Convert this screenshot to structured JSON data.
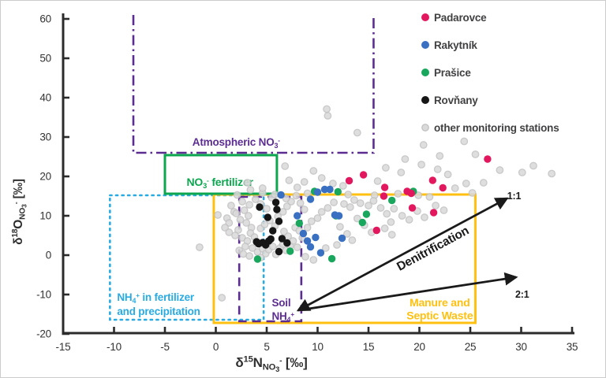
{
  "figure": {
    "type_label": "nitrate dual isotope biplot",
    "background": "#ffffff",
    "border_color": "#cccccc",
    "axis_color": "#2b2b2b",
    "tick_label_color": "#333333",
    "legend_text_color": "#414042"
  },
  "chart_data": {
    "type": "scatter",
    "xlim": [
      -15,
      35
    ],
    "ylim": [
      -20,
      60
    ],
    "x_ticks": [
      -15,
      -10,
      -5,
      0,
      5,
      10,
      15,
      20,
      25,
      30,
      35
    ],
    "y_ticks": [
      -20,
      -10,
      0,
      10,
      20,
      30,
      40,
      50,
      60
    ],
    "grid": false,
    "xlabel_rich": [
      [
        "δ",
        "n"
      ],
      [
        "15",
        "sup"
      ],
      [
        "N",
        "n"
      ],
      [
        "NO",
        "sub"
      ],
      [
        "3",
        "sub2"
      ],
      [
        "-",
        "msup"
      ],
      [
        " [‰]",
        "n"
      ]
    ],
    "ylabel_rich": [
      [
        "δ",
        "n"
      ],
      [
        "18",
        "sup"
      ],
      [
        "O",
        "n"
      ],
      [
        "NO",
        "sub"
      ],
      [
        "3",
        "sub2"
      ],
      [
        "-",
        "msup"
      ],
      [
        " [‰]",
        "n"
      ]
    ],
    "series": [
      {
        "id": "padarovce",
        "name": "Padarovce",
        "color": "#e2175d",
        "r": 4.7,
        "points": [
          [
            13.1,
            18.9
          ],
          [
            14.5,
            20.4
          ],
          [
            16.6,
            17.2
          ],
          [
            16.5,
            15.0
          ],
          [
            18.8,
            16.2
          ],
          [
            19.2,
            15.7
          ],
          [
            19.3,
            12.0
          ],
          [
            21.3,
            19.0
          ],
          [
            22.3,
            17.1
          ],
          [
            21.4,
            10.8
          ],
          [
            15.8,
            6.3
          ],
          [
            26.7,
            24.4
          ]
        ]
      },
      {
        "id": "rakytnik",
        "name": "Rakytník",
        "color": "#3a70c2",
        "r": 4.7,
        "points": [
          [
            6.4,
            15.3
          ],
          [
            9.3,
            14.2
          ],
          [
            10.0,
            16.0
          ],
          [
            10.7,
            16.7
          ],
          [
            11.2,
            16.7
          ],
          [
            8.0,
            10.0
          ],
          [
            11.7,
            10.2
          ],
          [
            12.1,
            10.0
          ],
          [
            12.4,
            4.3
          ],
          [
            8.6,
            5.5
          ],
          [
            9.8,
            4.5
          ],
          [
            9.0,
            3.6
          ],
          [
            9.3,
            2.1
          ],
          [
            10.3,
            0.6
          ]
        ]
      },
      {
        "id": "prasice",
        "name": "Prašice",
        "color": "#18a75c",
        "r": 4.7,
        "points": [
          [
            9.7,
            16.2
          ],
          [
            12.0,
            16.1
          ],
          [
            19.4,
            16.2
          ],
          [
            17.3,
            13.9
          ],
          [
            11.8,
            10.0
          ],
          [
            14.8,
            10.4
          ],
          [
            14.4,
            8.3
          ],
          [
            8.2,
            8.1
          ],
          [
            7.3,
            1.0
          ],
          [
            4.1,
            -1.0
          ],
          [
            11.4,
            -0.9
          ]
        ]
      },
      {
        "id": "rovnany",
        "name": "Rovňany",
        "color": "#161616",
        "r": 4.7,
        "points": [
          [
            4.3,
            12.2
          ],
          [
            5.9,
            13.4
          ],
          [
            6.0,
            11.6
          ],
          [
            5.1,
            9.6
          ],
          [
            6.2,
            8.6
          ],
          [
            5.6,
            6.2
          ],
          [
            5.4,
            4.1
          ],
          [
            6.5,
            4.2
          ],
          [
            7.0,
            3.1
          ],
          [
            4.2,
            2.9
          ],
          [
            4.6,
            3.2
          ],
          [
            4.9,
            2.6
          ],
          [
            5.2,
            3.6
          ],
          [
            6.2,
            0.9
          ],
          [
            4.0,
            3.4
          ]
        ]
      },
      {
        "id": "other",
        "name": "other monitoring stations",
        "color": "#dadada",
        "stroke": "#c3c3c3",
        "r": 4.2,
        "points": [
          [
            -1.6,
            2.0
          ],
          [
            0.2,
            10.2
          ],
          [
            1.1,
            9.4
          ],
          [
            1.3,
            8.2
          ],
          [
            0.9,
            7.0
          ],
          [
            1.3,
            5.8
          ],
          [
            0.6,
            -10.8
          ],
          [
            1.5,
            12.6
          ],
          [
            1.8,
            11.0
          ],
          [
            2.0,
            10.6
          ],
          [
            2.4,
            9.0
          ],
          [
            2.8,
            11.4
          ],
          [
            3.2,
            10.0
          ],
          [
            3.0,
            8.2
          ],
          [
            3.5,
            7.0
          ],
          [
            2.2,
            6.4
          ],
          [
            1.9,
            5.0
          ],
          [
            2.6,
            4.4
          ],
          [
            3.1,
            3.6
          ],
          [
            3.4,
            5.6
          ],
          [
            3.8,
            4.6
          ],
          [
            2.9,
            2.2
          ],
          [
            2.3,
            1.2
          ],
          [
            3.6,
            1.8
          ],
          [
            4.1,
            0.8
          ],
          [
            4.4,
            -0.6
          ],
          [
            3.3,
            -0.2
          ],
          [
            2.7,
            0.3
          ],
          [
            4.6,
            1.6
          ],
          [
            4.9,
            0.4
          ],
          [
            5.2,
            1.4
          ],
          [
            5.6,
            2.2
          ],
          [
            5.9,
            0.2
          ],
          [
            6.3,
            1.8
          ],
          [
            6.6,
            2.8
          ],
          [
            6.9,
            1.2
          ],
          [
            7.3,
            2.4
          ],
          [
            7.6,
            3.6
          ],
          [
            7.1,
            4.8
          ],
          [
            6.7,
            6.0
          ],
          [
            7.8,
            7.0
          ],
          [
            8.2,
            6.2
          ],
          [
            8.5,
            4.4
          ],
          [
            8.0,
            2.0
          ],
          [
            4.4,
            6.8
          ],
          [
            4.8,
            7.8
          ],
          [
            5.3,
            8.8
          ],
          [
            5.8,
            7.4
          ],
          [
            6.1,
            9.8
          ],
          [
            6.6,
            11.0
          ],
          [
            7.0,
            12.4
          ],
          [
            7.4,
            13.6
          ],
          [
            5.0,
            11.8
          ],
          [
            4.4,
            13.0
          ],
          [
            3.9,
            14.2
          ],
          [
            3.3,
            12.8
          ],
          [
            2.6,
            13.6
          ],
          [
            5.5,
            14.6
          ],
          [
            6.9,
            14.4
          ],
          [
            8.3,
            13.2
          ],
          [
            8.7,
            11.6
          ],
          [
            2.1,
            15.3
          ],
          [
            4.6,
            15.8
          ],
          [
            5.8,
            15.4
          ],
          [
            7.9,
            15.1
          ],
          [
            9.0,
            15.7
          ],
          [
            13.0,
            15.4
          ],
          [
            15.6,
            15.2
          ],
          [
            17.9,
            15.6
          ],
          [
            19.9,
            15.2
          ],
          [
            3.1,
            18.4
          ],
          [
            3.4,
            16.6
          ],
          [
            4.6,
            17.0
          ],
          [
            6.8,
            22.6
          ],
          [
            7.2,
            19.0
          ],
          [
            8.0,
            17.2
          ],
          [
            8.7,
            18.6
          ],
          [
            9.6,
            21.4
          ],
          [
            10.4,
            19.6
          ],
          [
            11.5,
            18.2
          ],
          [
            12.5,
            17.6
          ],
          [
            16.7,
            22.2
          ],
          [
            18.2,
            21.0
          ],
          [
            15.9,
            18.8
          ],
          [
            20.2,
            23.0
          ],
          [
            18.6,
            24.4
          ],
          [
            21.8,
            21.8
          ],
          [
            22.8,
            20.5
          ],
          [
            9.4,
            8.6
          ],
          [
            9.0,
            7.0
          ],
          [
            10.0,
            9.4
          ],
          [
            10.4,
            11.0
          ],
          [
            11.0,
            12.0
          ],
          [
            11.6,
            13.4
          ],
          [
            12.6,
            13.0
          ],
          [
            13.2,
            12.2
          ],
          [
            13.6,
            14.0
          ],
          [
            14.2,
            13.2
          ],
          [
            15.0,
            12.6
          ],
          [
            15.5,
            13.8
          ],
          [
            16.2,
            12.0
          ],
          [
            16.8,
            10.5
          ],
          [
            17.3,
            5.2
          ],
          [
            17.5,
            11.8
          ],
          [
            18.3,
            10.0
          ],
          [
            19.0,
            9.0
          ],
          [
            19.8,
            11.2
          ],
          [
            20.5,
            9.6
          ],
          [
            21.0,
            14.8
          ],
          [
            21.6,
            12.6
          ],
          [
            22.4,
            11.4
          ],
          [
            13.9,
            9.3
          ],
          [
            14.6,
            7.6
          ],
          [
            15.3,
            5.8
          ],
          [
            16.6,
            6.8
          ],
          [
            17.2,
            8.4
          ],
          [
            12.2,
            7.2
          ],
          [
            12.9,
            5.4
          ],
          [
            13.4,
            3.8
          ],
          [
            11.9,
            2.6
          ],
          [
            10.8,
            1.8
          ],
          [
            9.6,
            -1.2
          ],
          [
            8.8,
            -0.4
          ],
          [
            20.4,
            28.0
          ],
          [
            24.4,
            28.9
          ],
          [
            22.0,
            25.2
          ],
          [
            25.5,
            25.6
          ],
          [
            27.9,
            21.6
          ],
          [
            30.1,
            21.0
          ],
          [
            31.2,
            22.7
          ],
          [
            33.0,
            20.7
          ],
          [
            26.3,
            18.4
          ],
          [
            24.6,
            18.2
          ],
          [
            25.2,
            15.8
          ],
          [
            23.5,
            17.0
          ],
          [
            10.9,
            37.1
          ],
          [
            11.0,
            35.4
          ],
          [
            13.9,
            31.1
          ]
        ]
      }
    ],
    "source_boxes": [
      {
        "id": "atmospheric-no3",
        "color": "#5c2d91",
        "line": "dashdot",
        "width": 2.6,
        "open_top": true,
        "x": [
          -8.1,
          15.5
        ],
        "y": [
          26,
          60
        ],
        "labels": [
          {
            "rich": [
              [
                "Atmospheric NO",
                "n"
              ],
              [
                "3",
                "sub"
              ],
              [
                "-",
                "msup"
              ]
            ],
            "at": [
              2.0,
              27.8
            ],
            "anchor": "middle",
            "fs": 13.5
          }
        ]
      },
      {
        "id": "nh4-fertilizer-precipitation",
        "color": "#29abe2",
        "line": "dotted",
        "width": 2.6,
        "x": [
          -10.4,
          4.7
        ],
        "y": [
          -16.4,
          15.2
        ],
        "labels": [
          {
            "rich": [
              [
                "NH",
                "n"
              ],
              [
                "4",
                "sub"
              ],
              [
                "+",
                "msup"
              ],
              [
                " in fertilizer",
                "n"
              ]
            ],
            "at": [
              -9.7,
              -11.6
            ],
            "anchor": "start",
            "fs": 13.5
          },
          {
            "rich": [
              [
                "and precipitation",
                "n"
              ]
            ],
            "at": [
              -9.7,
              -15.2
            ],
            "anchor": "start",
            "fs": 13.5
          }
        ]
      },
      {
        "id": "manure-septic-waste",
        "color": "#ffc010",
        "line": "solid",
        "width": 3,
        "x": [
          -0.2,
          25.5
        ],
        "y": [
          -17.2,
          15.4
        ],
        "labels": [
          {
            "rich": [
              [
                "Manure and",
                "n"
              ]
            ],
            "at": [
              22.0,
              -13.0
            ],
            "anchor": "middle",
            "fs": 14
          },
          {
            "rich": [
              [
                "Septic Waste",
                "n"
              ]
            ],
            "at": [
              22.0,
              -16.3
            ],
            "anchor": "middle",
            "fs": 14
          }
        ]
      },
      {
        "id": "no3-fertilizer",
        "color": "#0ca64f",
        "line": "solid",
        "width": 3,
        "x": [
          -5.0,
          6.0
        ],
        "y": [
          15.6,
          25.4
        ],
        "labels": [
          {
            "rich": [
              [
                "NO",
                "n"
              ],
              [
                "3",
                "sub"
              ],
              [
                "-",
                "msup"
              ],
              [
                " fertilizer",
                "n"
              ]
            ],
            "at": [
              0.4,
              17.6
            ],
            "anchor": "middle",
            "fs": 14
          }
        ]
      },
      {
        "id": "soil-nh4",
        "color": "#5c2d91",
        "line": "dashed",
        "width": 2.6,
        "x": [
          2.3,
          8.4
        ],
        "y": [
          -16.8,
          14.8
        ],
        "labels": [
          {
            "rich": [
              [
                "Soil",
                "n"
              ]
            ],
            "at": [
              5.5,
              -13.0
            ],
            "anchor": "start",
            "fs": 13.5
          },
          {
            "rich": [
              [
                "NH",
                "n"
              ],
              [
                "4",
                "sub"
              ],
              [
                "+",
                "msup"
              ]
            ],
            "at": [
              5.5,
              -16.4
            ],
            "anchor": "start",
            "fs": 13.5
          }
        ]
      }
    ],
    "arrows": [
      {
        "from": [
          8.1,
          -14.0
        ],
        "to": [
          28.6,
          14.4
        ],
        "label": "1:1",
        "label_at": [
          29.3,
          14.2
        ],
        "start_head": true
      },
      {
        "from": [
          8.1,
          -14.0
        ],
        "to": [
          29.5,
          -5.6
        ],
        "label": "2:1",
        "label_at": [
          30.1,
          -10.8
        ],
        "start_head": false
      }
    ],
    "arrow_annotation": {
      "text": "Denitrification",
      "at": [
        21.5,
        0.8
      ],
      "angle": -28.5
    },
    "legend": {
      "position": "top-right"
    }
  }
}
